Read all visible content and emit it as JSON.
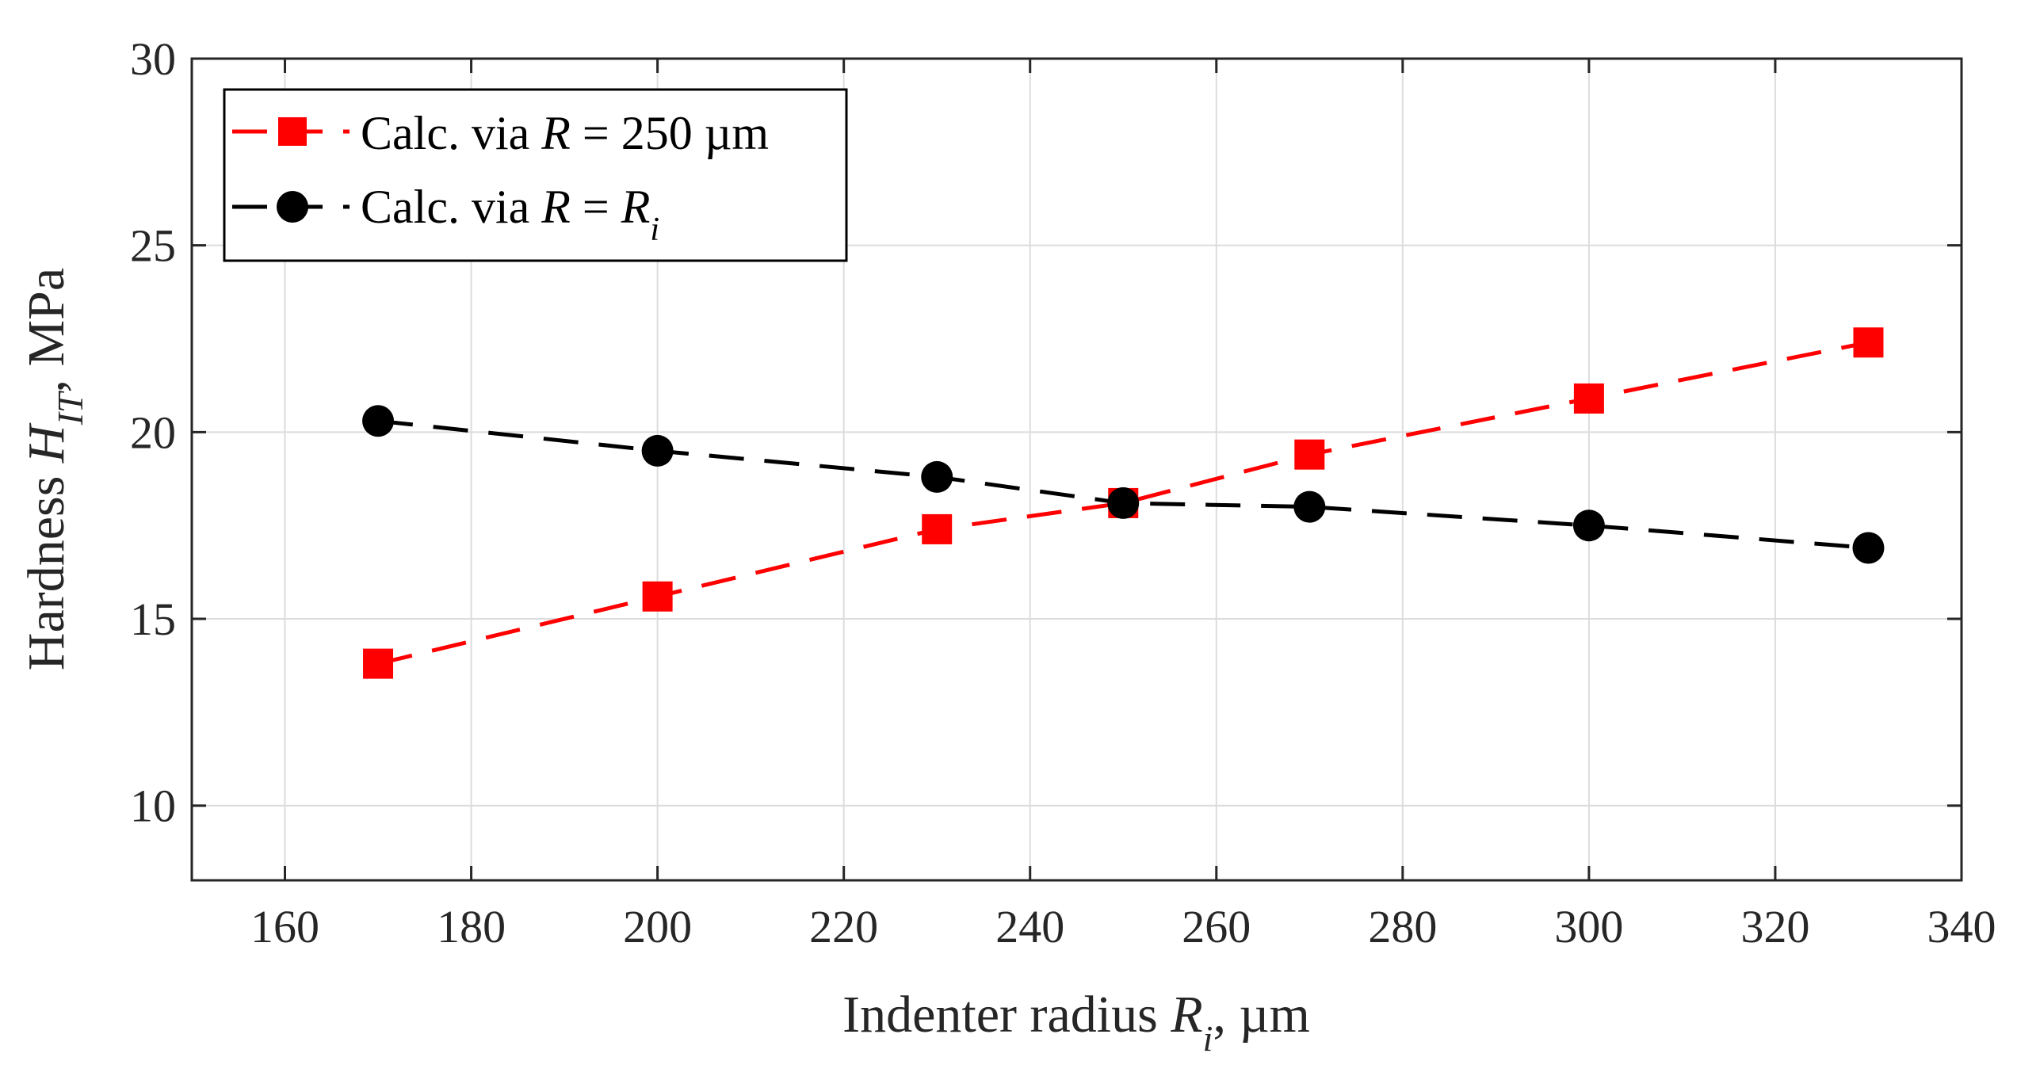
{
  "chart_data": {
    "type": "line",
    "title": "",
    "xlabel": {
      "prefix": "Indenter radius ",
      "var": "R",
      "sub": "i",
      "suffix": ", µm"
    },
    "ylabel": {
      "prefix": "Hardness ",
      "var": "H",
      "sub": "IT",
      "suffix": ", MPa"
    },
    "xlim": [
      150,
      340
    ],
    "ylim": [
      8,
      30
    ],
    "xticks": [
      160,
      180,
      200,
      220,
      240,
      260,
      280,
      300,
      320,
      340
    ],
    "yticks": [
      10,
      15,
      20,
      25,
      30
    ],
    "grid": true,
    "legend_position": "top-left",
    "series": [
      {
        "name": "Calc. via R = 250 µm",
        "legend": {
          "prefix": "Calc. via ",
          "var": "R",
          "mid": " = 250 µm",
          "sub": ""
        },
        "color": "#ff0000",
        "marker": "square",
        "line_style": "dashed",
        "x": [
          170,
          200,
          230,
          250,
          270,
          300,
          330
        ],
        "y": [
          13.8,
          15.6,
          17.4,
          18.1,
          19.4,
          20.9,
          22.4
        ]
      },
      {
        "name": "Calc. via R = Ri",
        "legend": {
          "prefix": "Calc. via ",
          "var": "R",
          "mid": " = ",
          "var2": "R",
          "sub": "i"
        },
        "color": "#000000",
        "marker": "circle",
        "line_style": "dashed",
        "x": [
          170,
          200,
          230,
          250,
          270,
          300,
          330
        ],
        "y": [
          20.3,
          19.5,
          18.8,
          18.1,
          18.0,
          17.5,
          16.9
        ]
      }
    ]
  }
}
